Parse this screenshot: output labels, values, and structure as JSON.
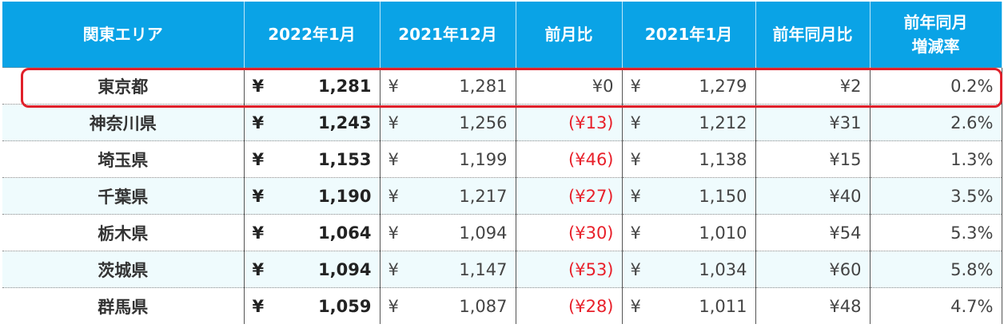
{
  "table": {
    "headers": [
      "関東エリア",
      "2022年1月",
      "2021年12月",
      "前月比",
      "2021年1月",
      "前年同月比",
      [
        "前年同月",
        "増減率"
      ]
    ],
    "rows": [
      [
        "東京都",
        "¥",
        "1,281",
        "¥",
        "1,281",
        "¥0",
        "¥",
        "1,279",
        "¥2",
        "0.2%"
      ],
      [
        "神奈川県",
        "¥",
        "1,243",
        "¥",
        "1,256",
        "(¥13)",
        "¥",
        "1,212",
        "¥31",
        "2.6%"
      ],
      [
        "埼玉県",
        "¥",
        "1,153",
        "¥",
        "1,199",
        "(¥46)",
        "¥",
        "1,138",
        "¥15",
        "1.3%"
      ],
      [
        "千葉県",
        "¥",
        "1,190",
        "¥",
        "1,217",
        "(¥27)",
        "¥",
        "1,150",
        "¥40",
        "3.5%"
      ],
      [
        "栃木県",
        "¥",
        "1,064",
        "¥",
        "1,094",
        "(¥30)",
        "¥",
        "1,010",
        "¥54",
        "5.3%"
      ],
      [
        "茨城県",
        "¥",
        "1,094",
        "¥",
        "1,147",
        "(¥53)",
        "¥",
        "1,034",
        "¥60",
        "5.8%"
      ],
      [
        "群馬県",
        "¥",
        "1,059",
        "¥",
        "1,087",
        "(¥28)",
        "¥",
        "1,011",
        "¥48",
        "4.7%"
      ]
    ]
  }
}
